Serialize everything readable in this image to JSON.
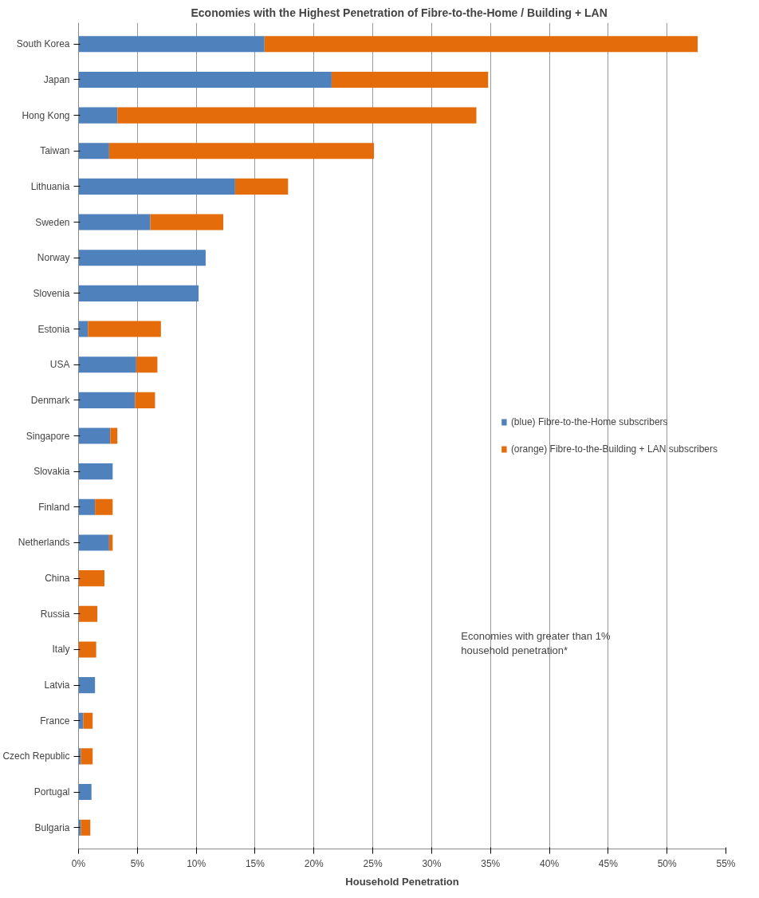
{
  "chart_data": {
    "type": "bar",
    "orientation": "horizontal",
    "stacked": true,
    "title": "Economies with the Highest Penetration of  Fibre-to-the-Home / Building  + LAN",
    "xlabel": "Household Penetration",
    "categories": [
      "South Korea",
      "Japan",
      "Hong Kong",
      "Taiwan",
      "Lithuania",
      "Sweden",
      "Norway",
      "Slovenia",
      "Estonia",
      "USA",
      "Denmark",
      "Singapore",
      "Slovakia",
      "Finland",
      "Netherlands",
      "China",
      "Russia",
      "Italy",
      "Latvia",
      "France",
      "Czech Republic",
      "Portugal",
      "Bulgaria"
    ],
    "series": [
      {
        "name": "(blue) Fibre-to-the-Home subscribers",
        "color": "#4f81bd",
        "values": [
          15.8,
          21.5,
          3.3,
          2.6,
          13.3,
          6.1,
          10.8,
          10.2,
          0.8,
          4.9,
          4.8,
          2.7,
          2.9,
          1.4,
          2.6,
          null,
          null,
          null,
          1.4,
          0.4,
          0.2,
          1.1,
          0.2
        ]
      },
      {
        "name": "(orange) Fibre-to-the-Building + LAN subscribers",
        "color": "#e46c0a",
        "values": [
          36.8,
          13.3,
          30.5,
          22.5,
          4.5,
          6.2,
          null,
          null,
          6.2,
          1.8,
          1.7,
          0.6,
          null,
          1.5,
          0.3,
          2.2,
          1.6,
          1.5,
          null,
          0.8,
          1.0,
          null,
          0.8
        ]
      }
    ],
    "xlim": [
      0,
      55
    ],
    "xticks": [
      {
        "value": 0,
        "label": "0%"
      },
      {
        "value": 5,
        "label": "5%"
      },
      {
        "value": 10,
        "label": "10%"
      },
      {
        "value": 15,
        "label": "15%"
      },
      {
        "value": 20,
        "label": "20%"
      },
      {
        "value": 25,
        "label": "25%"
      },
      {
        "value": 30,
        "label": "30%"
      },
      {
        "value": 35,
        "label": "35%"
      },
      {
        "value": 40,
        "label": "40%"
      },
      {
        "value": 45,
        "label": "45%"
      },
      {
        "value": 50,
        "label": "50%"
      },
      {
        "value": 55,
        "label": "55%"
      }
    ],
    "grid": "x",
    "legend": "right",
    "annotations": [
      "Economies with greater than 1%\nhousehold penetration*"
    ]
  }
}
